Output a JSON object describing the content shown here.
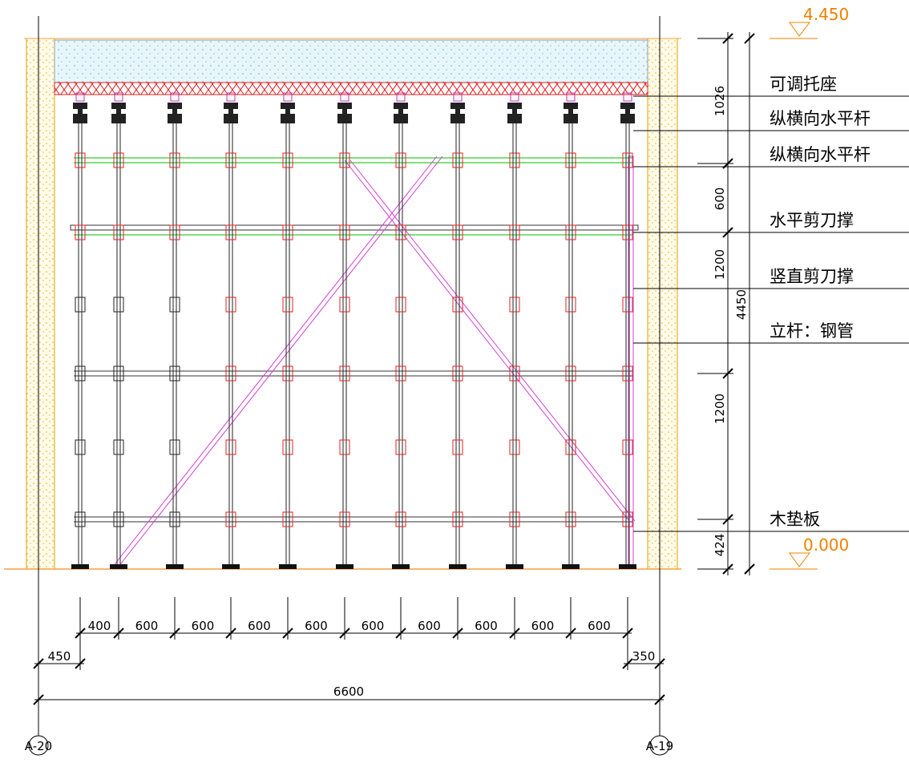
{
  "elevations": {
    "top": "4.450",
    "bottom": "0.000"
  },
  "callouts": [
    "可调托座",
    "纵横向水平杆",
    "纵横向水平杆",
    "水平剪刀撑",
    "竖直剪刀撑",
    "立杆：钢管",
    "木垫板"
  ],
  "vertical_dims": [
    "1026",
    "600",
    "1200",
    "1200",
    "424"
  ],
  "vertical_total": "4450",
  "spacing_dims": [
    "400",
    "600",
    "600",
    "600",
    "600",
    "600",
    "600",
    "600",
    "600",
    "600"
  ],
  "edge_dims": {
    "left": "450",
    "right": "350"
  },
  "total_width": "6600",
  "axes": {
    "left": "A-20",
    "right": "A-19"
  }
}
